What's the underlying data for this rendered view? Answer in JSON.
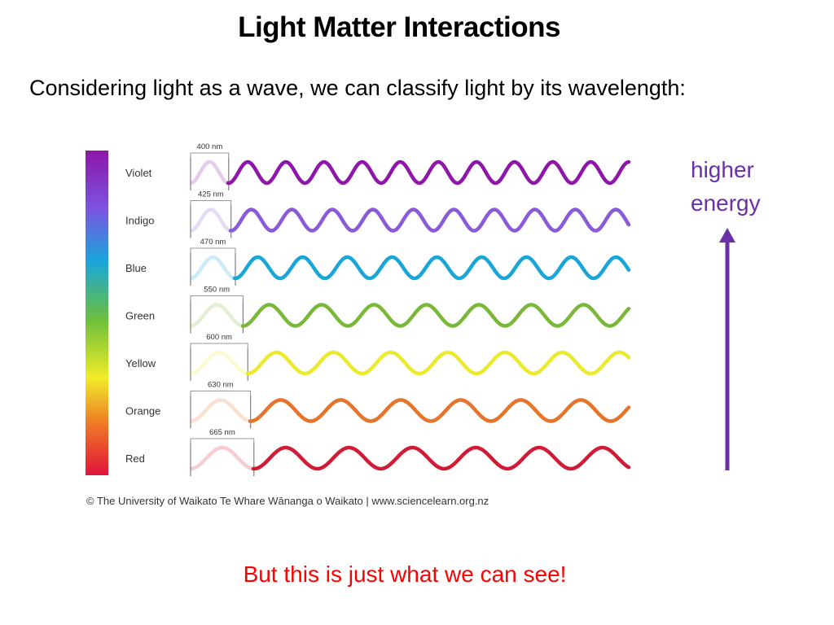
{
  "slide": {
    "title": "Light Matter Interactions",
    "subtitle": "Considering light as a wave, we can classify light by its wavelength:",
    "energy_label": [
      "higher",
      "energy"
    ],
    "footer": "But this is just what we can see!",
    "credit": "© The University of Waikato Te Whare Wānanga o Waikato | www.sciencelearn.org.nz"
  },
  "colors": {
    "energy_purple": "#6b2fa8",
    "footer_red": "#ff0000"
  },
  "spectrum": [
    {
      "name": "Violet",
      "wavelength": "400 nm",
      "nm": 400,
      "color": "#8e16a8"
    },
    {
      "name": "Indigo",
      "wavelength": "425 nm",
      "nm": 425,
      "color": "#8a5ad8"
    },
    {
      "name": "Blue",
      "wavelength": "470 nm",
      "nm": 470,
      "color": "#18a6d8"
    },
    {
      "name": "Green",
      "wavelength": "550 nm",
      "nm": 550,
      "color": "#7ab83a"
    },
    {
      "name": "Yellow",
      "wavelength": "600 nm",
      "nm": 600,
      "color": "#ecea2e"
    },
    {
      "name": "Orange",
      "wavelength": "630 nm",
      "nm": 630,
      "color": "#e6742a"
    },
    {
      "name": "Red",
      "wavelength": "665 nm",
      "nm": 665,
      "color": "#d01c36"
    }
  ]
}
